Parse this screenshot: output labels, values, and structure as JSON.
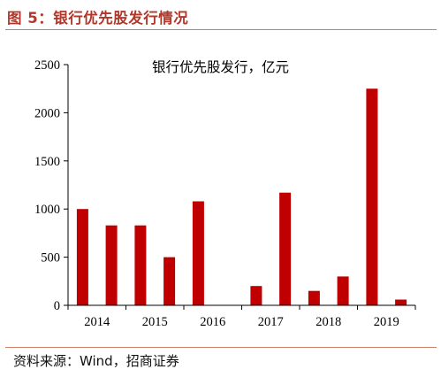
{
  "header": {
    "title": "图 5：银行优先股发行情况"
  },
  "footer": {
    "source": "资料来源：Wind，招商证券"
  },
  "colors": {
    "bar": "#c00000",
    "title": "#b0382a",
    "rule": "#c98066"
  },
  "chart_data": {
    "type": "bar",
    "title": "银行优先股发行，亿元",
    "xlabel": "",
    "ylabel": "",
    "ylim": [
      0,
      2500
    ],
    "yticks": [
      0,
      500,
      1000,
      1500,
      2000,
      2500
    ],
    "x_tick_labels": [
      "2014",
      "2015",
      "2016",
      "2017",
      "2018",
      "2019"
    ],
    "grid": false,
    "series": [
      {
        "values": [
          1000,
          830,
          830,
          500,
          1080,
          0,
          200,
          1170,
          150,
          300,
          2250,
          60
        ]
      }
    ]
  }
}
